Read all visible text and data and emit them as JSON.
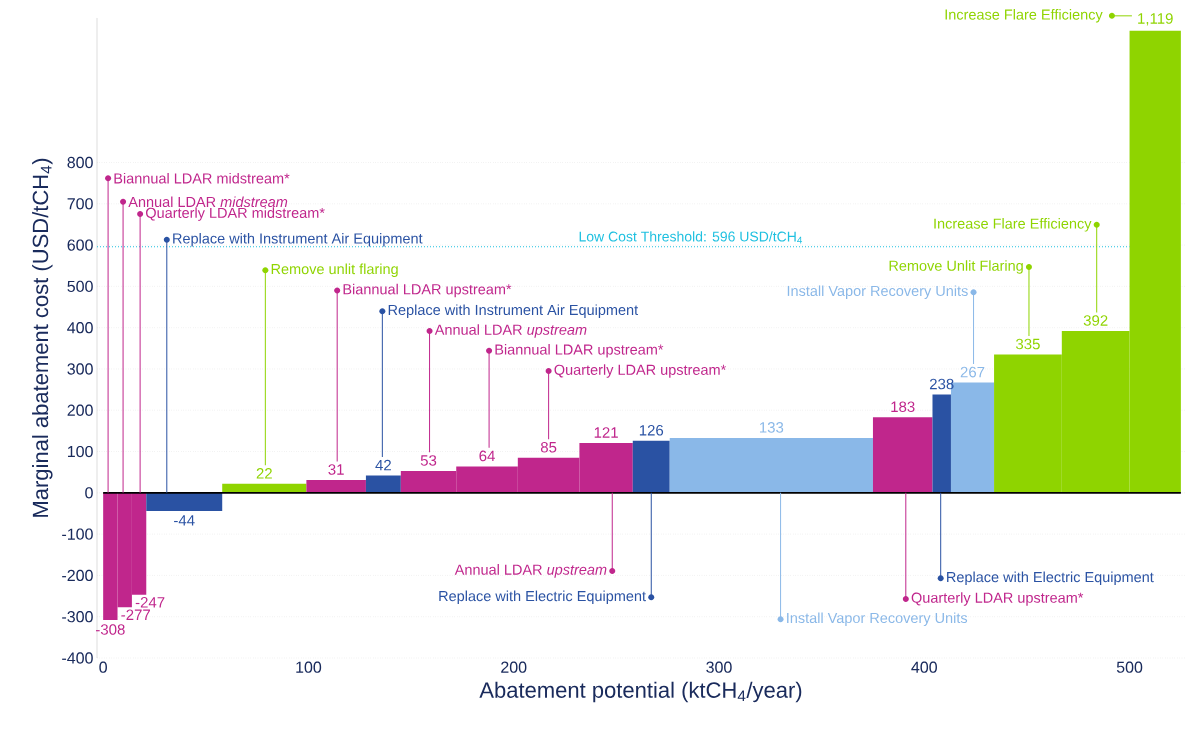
{
  "chart_data": {
    "type": "histogram",
    "xlabel": "Abatement potential (ktCH$_{4}$/year)",
    "ylabel": "Marginal abatement cost (USD/tCH$_{4}$)",
    "bins": [
      0,
      7,
      14,
      21,
      58,
      99,
      128,
      145,
      172,
      202,
      232,
      258,
      276,
      375,
      404,
      413,
      434,
      467,
      500,
      525
    ],
    "values": [
      -308,
      -277,
      -247,
      -44,
      22,
      31,
      42,
      53,
      64,
      85,
      121,
      126,
      133,
      183,
      238,
      267,
      335,
      392,
      1119
    ],
    "value_labels": [
      "-308",
      "-277",
      "-247",
      "-44",
      "22",
      "31",
      "42",
      "53",
      "64",
      "85",
      "121",
      "126",
      "133",
      "183",
      "238",
      "267",
      "335",
      "392",
      "1,119"
    ],
    "colors": [
      "#c0268c",
      "#c0268c",
      "#c0268c",
      "#2a52a3",
      "#8fd400",
      "#c0268c",
      "#2a52a3",
      "#c0268c",
      "#c0268c",
      "#c0268c",
      "#c0268c",
      "#2a52a3",
      "#8ab8e8",
      "#c0268c",
      "#2a52a3",
      "#8ab8e8",
      "#8fd400",
      "#8fd400",
      "#8fd400"
    ],
    "xlim": [
      -3,
      527
    ],
    "ylim": [
      -400,
      1150
    ],
    "xticks": [
      0,
      100,
      200,
      300,
      400,
      500
    ],
    "yticks": [
      -400,
      -300,
      -200,
      -100,
      0,
      100,
      200,
      300,
      400,
      500,
      600,
      700,
      800
    ],
    "grid": "y",
    "ref_lines": [
      {
        "axis": "y",
        "value": 596,
        "label": "Low Cost Threshold: 596 USD/tCH$_{4}$",
        "color": "#1ec0e0",
        "line_style": "dotted"
      }
    ],
    "annotations": [
      {
        "text": "Biannual LDAR midstream*",
        "x": 2.4,
        "y": 762
      },
      {
        "text": "Annual LDAR *midstream*",
        "x": 9.7,
        "y": 705
      },
      {
        "text": "Quarterly LDAR midstream*",
        "x": 18,
        "y": 675
      },
      {
        "text": "Replace with Instrument Air Equipment",
        "x": 31,
        "y": 613
      },
      {
        "text": "Remove unlit flaring",
        "x": 79,
        "y": 539
      },
      {
        "text": "Biannual LDAR upstream*",
        "x": 114,
        "y": 490
      },
      {
        "text": "Replace with Instrument Air Equipment",
        "x": 136,
        "y": 440
      },
      {
        "text": "Annual LDAR *upstream*",
        "x": 159,
        "y": 392
      },
      {
        "text": "Biannual LDAR upstream*",
        "x": 188,
        "y": 344
      },
      {
        "text": "Quarterly LDAR upstream*",
        "x": 217,
        "y": 295
      },
      {
        "text": "Annual LDAR *upstream*",
        "x": 248,
        "y": -189
      },
      {
        "text": "Replace with Electric Equipment",
        "x": 267,
        "y": -253
      },
      {
        "text": "Install Vapor Recovery Units",
        "x": 330,
        "y": -306
      },
      {
        "text": "Quarterly LDAR upstream*",
        "x": 391,
        "y": -257
      },
      {
        "text": "Replace with Electric Equipment",
        "x": 408,
        "y": -207
      },
      {
        "text": "Install Vapor Recovery Units",
        "x": 424,
        "y": 486
      },
      {
        "text": "Remove Unlit Flaring",
        "x": 451,
        "y": 547
      },
      {
        "text": "Increase Flare Efficiency",
        "x": 484,
        "y": 649
      },
      "Increase Flare Efficiency"
    ]
  }
}
